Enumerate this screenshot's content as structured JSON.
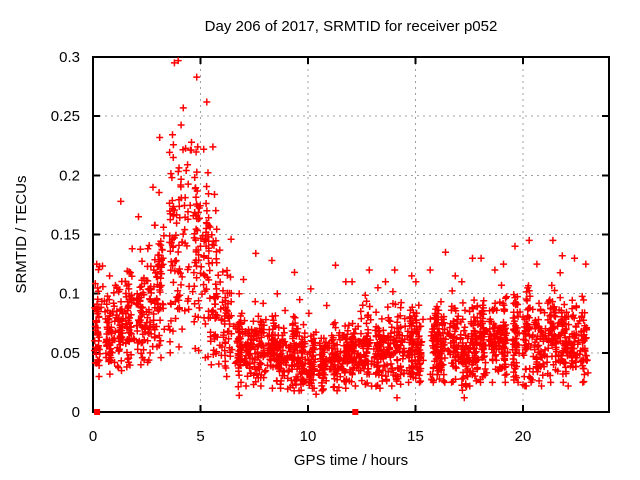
{
  "figure": {
    "background": "#ffffff"
  },
  "chart_data": {
    "type": "scatter",
    "title": "Day 206 of 2017, SRMTID for receiver p052",
    "xlabel": "GPS time / hours",
    "ylabel": "SRMTID / TECUs",
    "xlim": [
      0,
      24
    ],
    "ylim": [
      0,
      0.3
    ],
    "xticks": [
      0,
      5,
      10,
      15,
      20
    ],
    "xtick_labels": [
      "0",
      "5",
      "10",
      "15",
      "20"
    ],
    "yticks": [
      0,
      0.05,
      0.1,
      0.15,
      0.2,
      0.25,
      0.3
    ],
    "ytick_labels": [
      "0",
      "0.05",
      "0.1",
      "0.15",
      "0.2",
      "0.25",
      "0.3"
    ],
    "grid": true,
    "grid_style": "dashed",
    "grid_color": "#a0a0a0",
    "axis_color": "#000000",
    "legend": "none",
    "marker": "plus",
    "marker_color": "#ff0000",
    "seed": 20170206,
    "features": {
      "description": "Dense TID scatter: quiet band ~0.04-0.12 TECU for 0-2.5 h, large disturbance peaking near hour 4.2 at 0.297 TECU, decay until ~6.5 h, then noisy baseline ~0.03-0.10 TECU with vertical arc streaks up to ~0.14 until data ends near 23.1 h",
      "peak_hour": 4.2,
      "peak_value": 0.297,
      "baseline_mean": 0.055,
      "data_start_hour": 0.05,
      "data_end_hour": 23.1
    },
    "series": [
      {
        "name": "SRMTID points",
        "style": "plus",
        "color": "#ff0000",
        "profile_columns": [
          "t_start",
          "t_end",
          "count",
          "mean",
          "sd",
          "min",
          "max"
        ],
        "profile_bins": [
          [
            0.05,
            0.5,
            52,
            0.072,
            0.018,
            0.03,
            0.125
          ],
          [
            0.5,
            1.0,
            55,
            0.07,
            0.016,
            0.032,
            0.115
          ],
          [
            1.0,
            1.5,
            55,
            0.076,
            0.022,
            0.035,
            0.178
          ],
          [
            1.5,
            2.0,
            55,
            0.078,
            0.02,
            0.038,
            0.138
          ],
          [
            2.0,
            2.5,
            55,
            0.082,
            0.022,
            0.04,
            0.165
          ],
          [
            2.5,
            3.0,
            52,
            0.095,
            0.028,
            0.042,
            0.19
          ],
          [
            3.0,
            3.5,
            50,
            0.115,
            0.035,
            0.046,
            0.232
          ],
          [
            3.5,
            4.0,
            50,
            0.14,
            0.045,
            0.05,
            0.295
          ],
          [
            4.0,
            4.5,
            50,
            0.162,
            0.05,
            0.055,
            0.297
          ],
          [
            4.5,
            5.0,
            50,
            0.15,
            0.048,
            0.052,
            0.283
          ],
          [
            5.0,
            5.5,
            50,
            0.128,
            0.045,
            0.046,
            0.262
          ],
          [
            5.5,
            6.0,
            48,
            0.1,
            0.038,
            0.04,
            0.224
          ],
          [
            6.0,
            6.5,
            50,
            0.072,
            0.024,
            0.03,
            0.146
          ],
          [
            6.5,
            7.0,
            55,
            0.055,
            0.015,
            0.014,
            0.1
          ],
          [
            7.0,
            7.5,
            58,
            0.052,
            0.015,
            0.022,
            0.112
          ],
          [
            7.5,
            8.0,
            58,
            0.055,
            0.018,
            0.022,
            0.134
          ],
          [
            8.0,
            8.5,
            58,
            0.052,
            0.016,
            0.02,
            0.128
          ],
          [
            8.5,
            9.0,
            58,
            0.048,
            0.014,
            0.02,
            0.1
          ],
          [
            9.0,
            9.5,
            58,
            0.048,
            0.015,
            0.018,
            0.118
          ],
          [
            9.5,
            10.0,
            58,
            0.045,
            0.013,
            0.018,
            0.095
          ],
          [
            10.0,
            10.5,
            58,
            0.042,
            0.013,
            0.015,
            0.104
          ],
          [
            10.5,
            11.0,
            58,
            0.042,
            0.012,
            0.018,
            0.09
          ],
          [
            11.0,
            11.5,
            58,
            0.045,
            0.014,
            0.018,
            0.124
          ],
          [
            11.5,
            12.0,
            58,
            0.048,
            0.014,
            0.02,
            0.11
          ],
          [
            12.0,
            12.5,
            58,
            0.05,
            0.015,
            0.022,
            0.11
          ],
          [
            12.5,
            13.0,
            58,
            0.052,
            0.016,
            0.022,
            0.12
          ],
          [
            13.0,
            13.5,
            58,
            0.05,
            0.014,
            0.02,
            0.105
          ],
          [
            13.5,
            14.0,
            58,
            0.052,
            0.015,
            0.022,
            0.11
          ],
          [
            14.0,
            14.5,
            58,
            0.055,
            0.016,
            0.012,
            0.12
          ],
          [
            14.5,
            15.0,
            58,
            0.055,
            0.016,
            0.025,
            0.115
          ],
          [
            15.0,
            15.5,
            58,
            0.055,
            0.015,
            0.025,
            0.11
          ],
          [
            15.5,
            16.0,
            58,
            0.058,
            0.016,
            0.025,
            0.12
          ],
          [
            16.0,
            16.5,
            58,
            0.06,
            0.018,
            0.025,
            0.135
          ],
          [
            16.5,
            17.0,
            58,
            0.058,
            0.016,
            0.025,
            0.115
          ],
          [
            17.0,
            17.5,
            58,
            0.052,
            0.018,
            0.012,
            0.11
          ],
          [
            17.5,
            18.0,
            58,
            0.058,
            0.018,
            0.022,
            0.13
          ],
          [
            18.0,
            18.5,
            58,
            0.06,
            0.018,
            0.025,
            0.13
          ],
          [
            18.5,
            19.0,
            58,
            0.058,
            0.016,
            0.025,
            0.12
          ],
          [
            19.0,
            19.5,
            58,
            0.06,
            0.018,
            0.025,
            0.125
          ],
          [
            19.5,
            20.0,
            58,
            0.062,
            0.019,
            0.025,
            0.14
          ],
          [
            20.0,
            20.5,
            58,
            0.06,
            0.019,
            0.022,
            0.145
          ],
          [
            20.5,
            21.0,
            58,
            0.058,
            0.017,
            0.022,
            0.125
          ],
          [
            21.0,
            21.5,
            58,
            0.065,
            0.02,
            0.025,
            0.145
          ],
          [
            21.5,
            22.0,
            58,
            0.062,
            0.018,
            0.025,
            0.132
          ],
          [
            22.0,
            22.5,
            58,
            0.06,
            0.018,
            0.022,
            0.13
          ],
          [
            22.5,
            23.1,
            52,
            0.065,
            0.02,
            0.025,
            0.125
          ]
        ]
      },
      {
        "name": "zero flags",
        "style": "filled-square",
        "color": "#ff0000",
        "points": [
          [
            0.19,
            0.0
          ],
          [
            12.2,
            0.0
          ]
        ]
      }
    ]
  }
}
